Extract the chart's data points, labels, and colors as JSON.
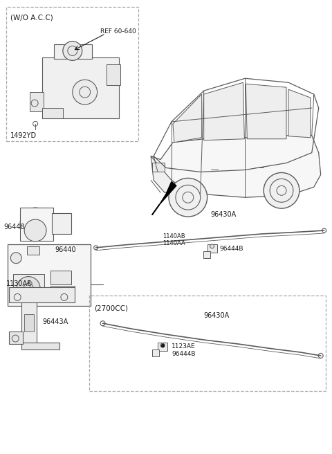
{
  "bg_color": "#ffffff",
  "lc": "#5a5a5a",
  "dc": "#1a1a1a",
  "fig_width": 4.8,
  "fig_height": 6.56,
  "dpi": 100,
  "labels": {
    "wo_acc": "(W/O A.C.C)",
    "ref_60_640": "REF 60-640",
    "part_1492yd": "1492YD",
    "part_96448": "96448",
    "part_96440": "96440",
    "part_96430a_top": "96430A",
    "part_1140ab": "1140AB",
    "part_1140aa": "1140AA",
    "part_96444b_top": "96444B",
    "part_96443a": "96443A",
    "part_1130af": "1130AF",
    "box_2700cc": "(2700CC)",
    "part_96430a_bot": "96430A",
    "part_1123ae": "1123AE",
    "part_96444b_bot": "96444B"
  }
}
